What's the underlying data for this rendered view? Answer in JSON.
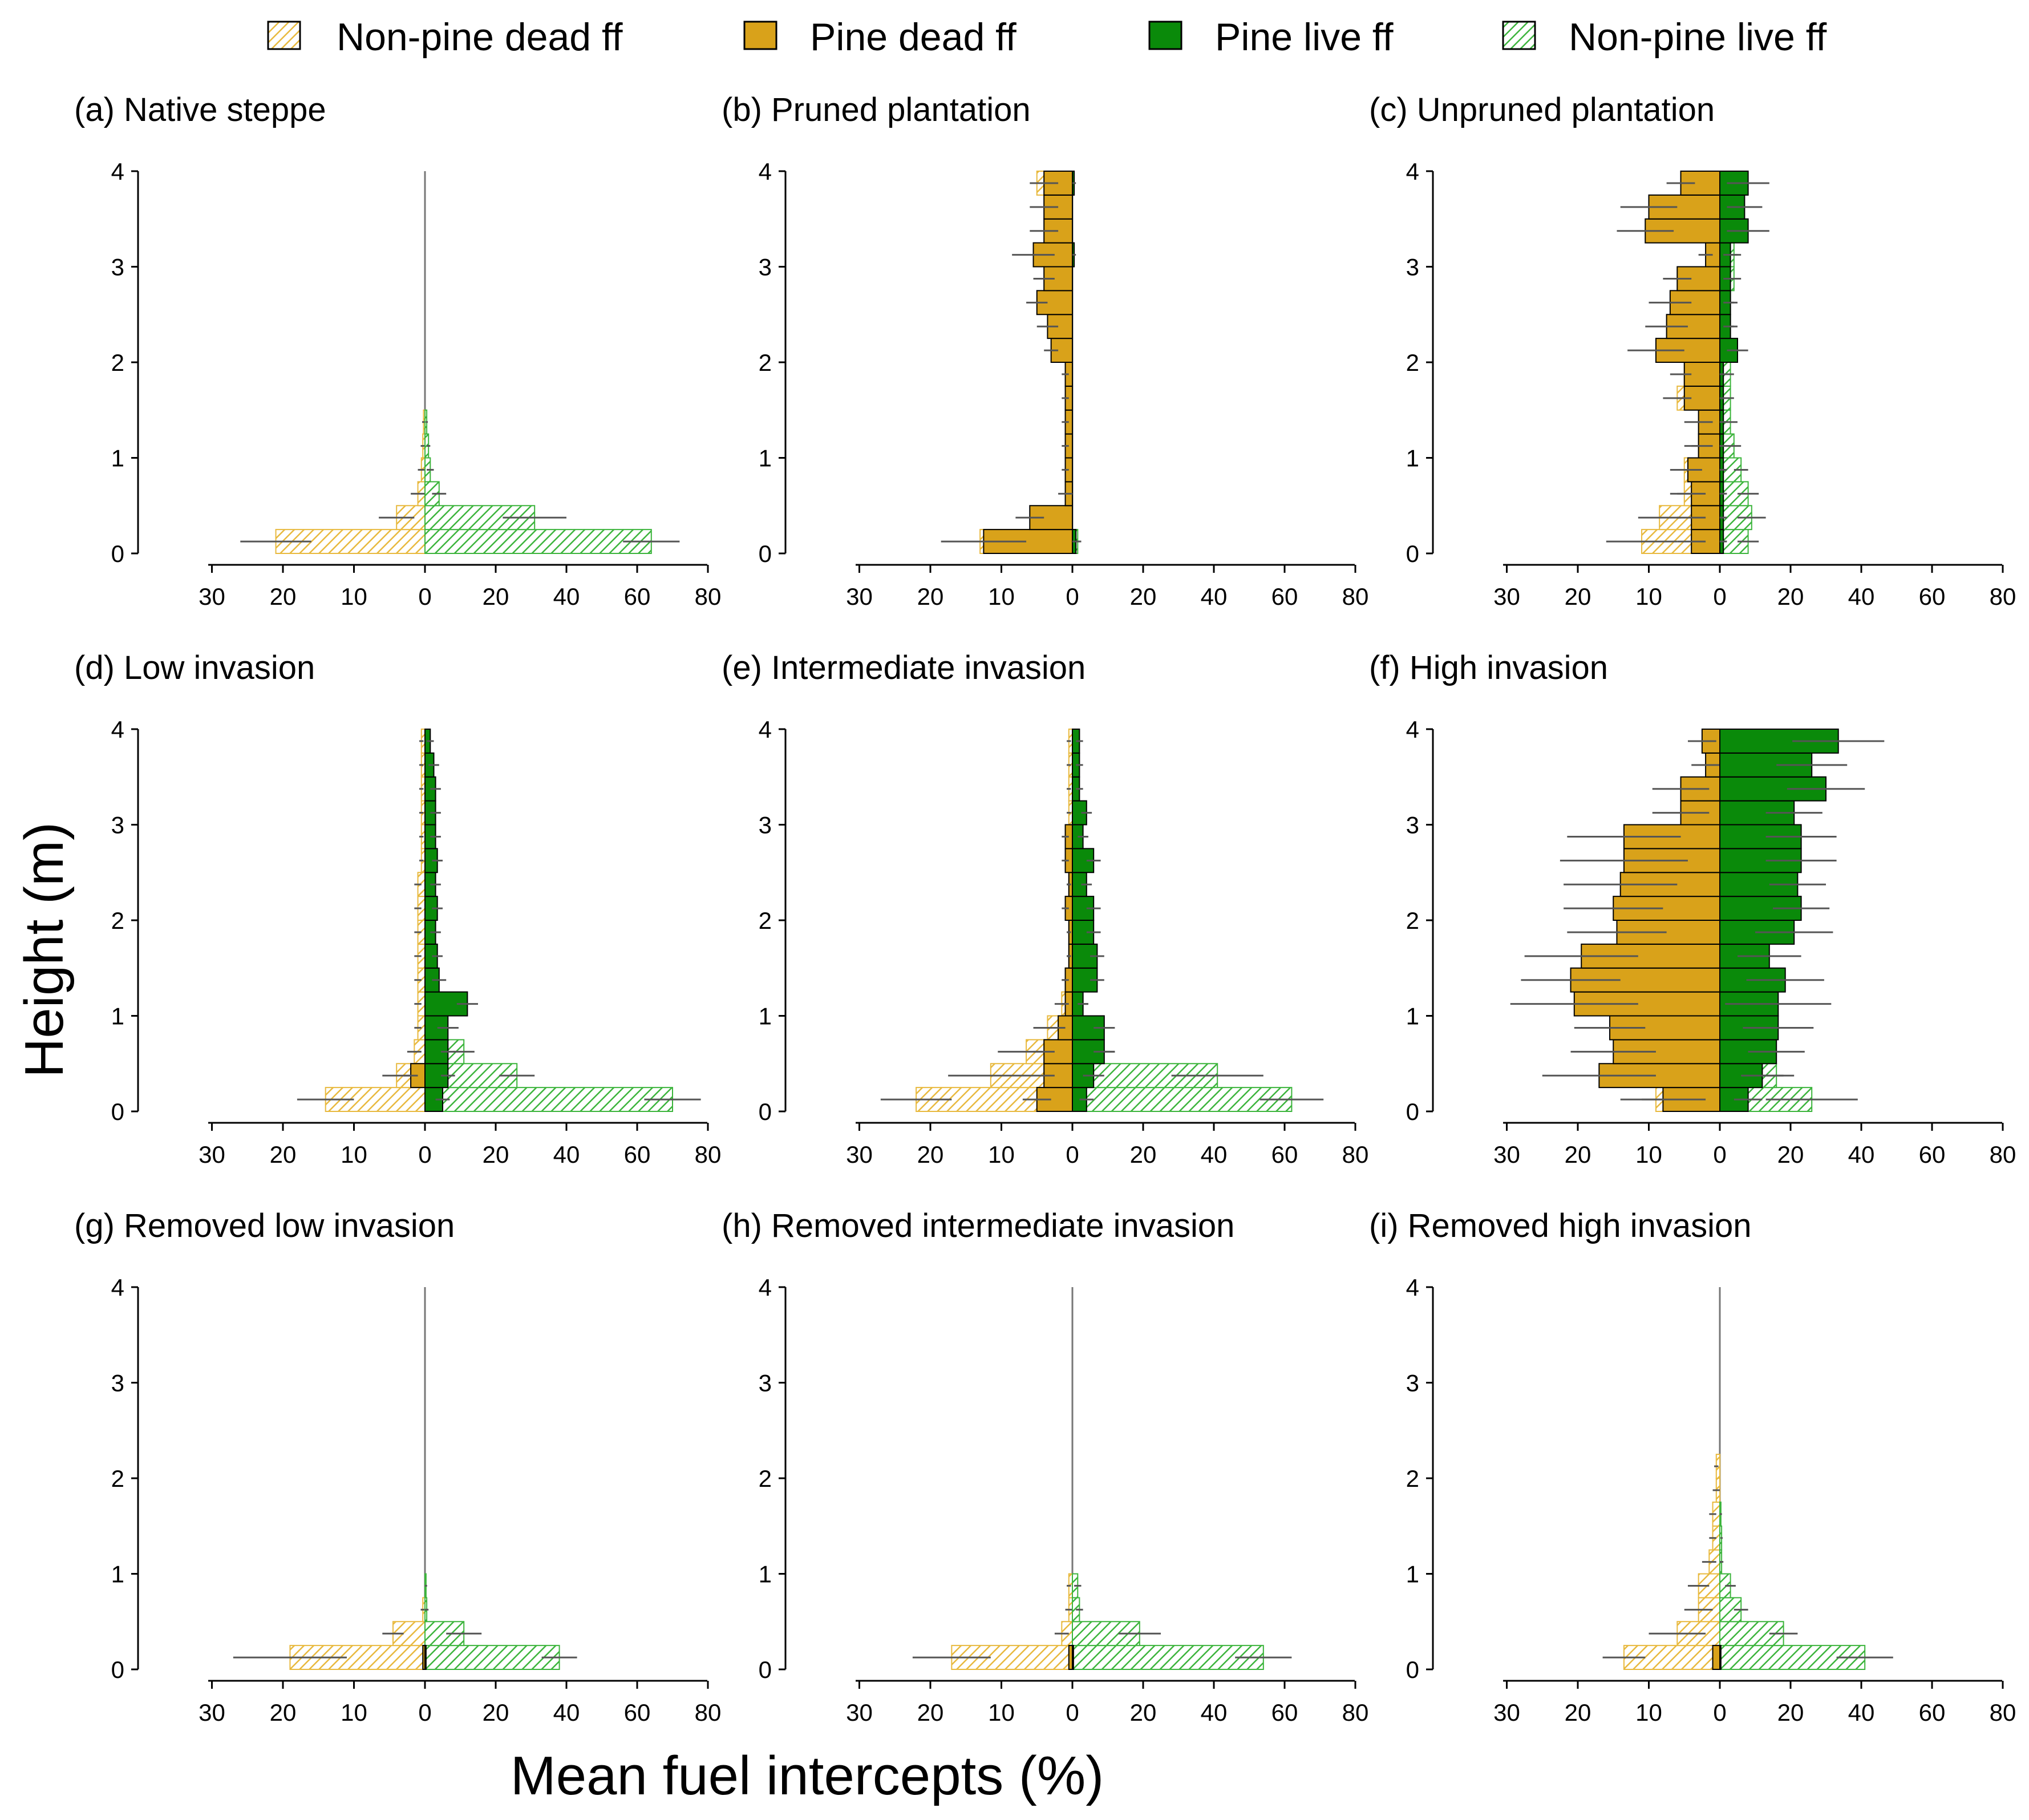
{
  "figure": {
    "ylabel": "Height (m)",
    "xlabel": "Mean fuel intercepts (%)"
  },
  "legend": {
    "items": [
      {
        "key": "npd",
        "label": "Non-pine dead ff"
      },
      {
        "key": "pd",
        "label": "Pine dead ff"
      },
      {
        "key": "pl",
        "label": "Pine live ff"
      },
      {
        "key": "npl",
        "label": "Non-pine live ff"
      }
    ]
  },
  "colors": {
    "npd": "#e8b93e",
    "pd": "#d9a21a",
    "pl": "#0a8a0a",
    "npl": "#3cb43c",
    "err": "#555555",
    "axis": "#000000"
  },
  "chart_data": {
    "type": "bar",
    "orientation": "back-to-back horizontal bars (population pyramid); dead fuel to the left, live fuel to the right",
    "bin_height_m": 0.25,
    "heights_m": [
      0,
      0.25,
      0.5,
      0.75,
      1,
      1.25,
      1.5,
      1.75,
      2,
      2.25,
      2.5,
      2.75,
      3,
      3.25,
      3.5,
      3.75,
      4
    ],
    "y_ticks": [
      "0",
      "1",
      "2",
      "3",
      "4"
    ],
    "x_ticks_left": [
      "30",
      "20",
      "10",
      "0"
    ],
    "x_ticks_right": [
      "20",
      "40",
      "60",
      "80"
    ],
    "xlim_left": [
      0,
      30
    ],
    "xlim_right": [
      0,
      80
    ],
    "panels": [
      {
        "title": "(a) Native steppe",
        "npd": [
          21,
          4,
          1,
          0.5,
          0.3,
          0.2,
          0,
          0,
          0,
          0,
          0,
          0,
          0,
          0,
          0,
          0
        ],
        "npd_err": [
          5,
          2.5,
          1,
          0.5,
          0.3,
          0.2,
          0,
          0,
          0,
          0,
          0,
          0,
          0,
          0,
          0,
          0
        ],
        "pd": [
          0,
          0,
          0,
          0,
          0,
          0,
          0,
          0,
          0,
          0,
          0,
          0,
          0,
          0,
          0,
          0
        ],
        "pd_err": [
          0,
          0,
          0,
          0,
          0,
          0,
          0,
          0,
          0,
          0,
          0,
          0,
          0,
          0,
          0,
          0
        ],
        "pl": [
          0,
          0,
          0,
          0,
          0,
          0,
          0,
          0,
          0,
          0,
          0,
          0,
          0,
          0,
          0,
          0
        ],
        "pl_err": [
          0,
          0,
          0,
          0,
          0,
          0,
          0,
          0,
          0,
          0,
          0,
          0,
          0,
          0,
          0,
          0
        ],
        "npl": [
          64,
          31,
          4,
          1.5,
          1,
          0.5,
          0,
          0,
          0,
          0,
          0,
          0,
          0,
          0,
          0,
          0
        ],
        "npl_err": [
          8,
          9,
          2,
          1,
          0.5,
          0.3,
          0,
          0,
          0,
          0,
          0,
          0,
          0,
          0,
          0,
          0
        ]
      },
      {
        "title": "(b) Pruned plantation",
        "npd": [
          13,
          0,
          0,
          0,
          0,
          0,
          0,
          0,
          0,
          0,
          0,
          0,
          0,
          0,
          0,
          5
        ],
        "npd_err": [
          0,
          0,
          0,
          0,
          0,
          0,
          0,
          0,
          0,
          0,
          0,
          0,
          0,
          0,
          0,
          0
        ],
        "pd": [
          12.5,
          6,
          1,
          1,
          1,
          1,
          1,
          1,
          3,
          3.5,
          5,
          4,
          5.5,
          4,
          4,
          4
        ],
        "pd_err": [
          6,
          2,
          1,
          0.5,
          0.5,
          0.5,
          0.5,
          0.5,
          1,
          1.5,
          1.5,
          1.5,
          3,
          2,
          2,
          2
        ],
        "pl": [
          1,
          0,
          0,
          0,
          0,
          0,
          0,
          0,
          0,
          0,
          0,
          0,
          0.5,
          0,
          0,
          0.5
        ],
        "pl_err": [
          1,
          0,
          0,
          0,
          0,
          0,
          0,
          0,
          0,
          0,
          0,
          0,
          0.5,
          0,
          0,
          0.5
        ],
        "npl": [
          1.5,
          0,
          0,
          0,
          0,
          0,
          0,
          0,
          0,
          0,
          0,
          0,
          0,
          0,
          0,
          0
        ],
        "npl_err": [
          1,
          0,
          0,
          0,
          0,
          0,
          0,
          0,
          0,
          0,
          0,
          0,
          0,
          0,
          0,
          0
        ]
      },
      {
        "title": "(c) Unpruned plantation",
        "npd": [
          11,
          8.5,
          5,
          5,
          3,
          2,
          6,
          5,
          5,
          3,
          3,
          3,
          1,
          1,
          1,
          1
        ],
        "npd_err": [
          5,
          3,
          2,
          2,
          1,
          1,
          2,
          2,
          2,
          1,
          1,
          1,
          1,
          1,
          1,
          1
        ],
        "pd": [
          4,
          4,
          4,
          4.5,
          3,
          3,
          5,
          5,
          9,
          7.5,
          7,
          6,
          2,
          10.5,
          10,
          5.5
        ],
        "pd_err": [
          2,
          2,
          2,
          2,
          2,
          2,
          1,
          1,
          4,
          3,
          3,
          2,
          1,
          4,
          4,
          2
        ],
        "pl": [
          1,
          1,
          1,
          1,
          1,
          1,
          1,
          1,
          5,
          3,
          3,
          3,
          3,
          8,
          7,
          8
        ],
        "pl_err": [
          1,
          1,
          1,
          1,
          1,
          1,
          1,
          1,
          3,
          2,
          2,
          2,
          2,
          6,
          5,
          6
        ],
        "npl": [
          8,
          9,
          8,
          6,
          4,
          3,
          3,
          3,
          3,
          3,
          3,
          4,
          4,
          4,
          4,
          4
        ],
        "npl_err": [
          3,
          4,
          3,
          2,
          2,
          2,
          1,
          1,
          1,
          1,
          1,
          2,
          2,
          2,
          2,
          2
        ]
      },
      {
        "title": "(d) Low invasion",
        "npd": [
          14,
          4,
          1.5,
          1,
          1,
          1,
          1,
          1,
          1,
          1,
          0.5,
          0.5,
          0.5,
          0.5,
          0.5,
          0.5
        ],
        "npd_err": [
          4,
          2,
          1,
          0.5,
          0.5,
          0.5,
          0.5,
          0.5,
          0.5,
          0.5,
          0.3,
          0.3,
          0.3,
          0.3,
          0.3,
          0.3
        ],
        "pd": [
          0,
          2,
          0,
          0,
          0,
          0,
          0,
          0,
          0,
          0,
          0,
          0,
          0,
          0,
          0,
          0
        ],
        "pd_err": [
          0,
          1,
          0,
          0,
          0,
          0,
          0,
          0,
          0,
          0,
          0,
          0,
          0,
          0,
          0,
          0
        ],
        "pl": [
          5,
          6.5,
          6.5,
          6.5,
          12,
          4,
          3.5,
          3,
          3.5,
          3,
          3.5,
          3,
          3,
          3,
          2.5,
          1.5
        ],
        "pl_err": [
          2,
          2,
          2,
          3,
          3,
          2,
          1.5,
          1.5,
          1.5,
          1.5,
          1.5,
          1.5,
          1.5,
          1.5,
          1.5,
          1
        ],
        "npl": [
          70,
          26,
          11,
          4,
          3,
          2,
          1.5,
          1,
          1,
          1,
          1,
          1,
          1,
          1,
          1,
          1
        ],
        "npl_err": [
          8,
          5,
          3,
          2,
          1.5,
          1,
          1,
          0.5,
          0.5,
          0.5,
          0.5,
          0.5,
          0.5,
          0.5,
          0.5,
          0.5
        ]
      },
      {
        "title": "(e) Intermediate invasion",
        "npd": [
          22,
          11.5,
          6.5,
          3.5,
          1.5,
          1,
          0.5,
          0.5,
          0.5,
          0.5,
          0.5,
          0.5,
          0.5,
          0.5,
          0.5,
          0.5
        ],
        "npd_err": [
          5,
          6,
          4,
          2,
          1,
          0.5,
          0.3,
          0.3,
          0.3,
          0.3,
          0.3,
          0.3,
          0.3,
          0.3,
          0.3,
          0.3
        ],
        "pd": [
          5,
          4,
          4,
          2,
          1,
          1,
          0.5,
          0.5,
          1,
          0.5,
          1,
          1,
          0,
          0,
          0,
          0
        ],
        "pd_err": [
          2,
          1.5,
          1.5,
          1,
          0.5,
          0.5,
          0.3,
          0.3,
          0.5,
          0.3,
          0.5,
          0.5,
          0,
          0,
          0,
          0
        ],
        "pl": [
          4,
          6,
          9,
          9,
          3,
          7,
          7,
          6,
          6,
          4,
          6,
          3,
          4,
          2,
          2,
          2
        ],
        "pl_err": [
          2,
          3,
          3,
          3,
          1.5,
          2,
          2,
          2,
          2,
          1.5,
          2,
          1.5,
          1.5,
          1,
          1,
          1
        ],
        "npl": [
          62,
          41,
          8,
          4,
          3,
          2,
          2,
          2,
          2,
          2,
          2,
          1,
          1,
          1,
          1,
          1
        ],
        "npl_err": [
          9,
          13,
          4,
          2,
          1.5,
          1,
          1,
          1,
          1,
          1,
          1,
          0.5,
          0.5,
          0.5,
          0.5,
          0.5
        ]
      },
      {
        "title": "(f) High invasion",
        "npd": [
          9,
          3,
          2,
          2,
          2,
          2,
          2,
          2,
          2,
          1,
          1,
          1,
          1,
          1,
          1,
          1
        ],
        "npd_err": [
          2,
          1,
          1,
          1,
          1,
          1,
          1,
          1,
          1,
          0.5,
          0.5,
          0.5,
          0.5,
          0.5,
          0.5,
          0.5
        ],
        "pd": [
          8,
          17,
          15,
          15.5,
          20.5,
          21,
          19.5,
          14.5,
          15,
          14,
          13.5,
          13.5,
          5.5,
          5.5,
          2,
          2.5
        ],
        "pd_err": [
          6,
          8,
          6,
          5,
          9,
          7,
          8,
          7,
          7,
          8,
          9,
          8,
          4,
          4,
          2,
          2
        ],
        "pl": [
          8,
          12,
          16,
          16.5,
          16.5,
          18.5,
          14,
          21,
          23,
          22,
          23,
          23,
          21,
          30,
          26,
          33.5
        ],
        "pl_err": [
          4,
          6,
          8,
          10,
          15,
          11,
          9,
          11,
          8,
          8,
          10,
          10,
          8,
          11,
          10,
          13
        ],
        "npl": [
          26,
          16,
          12,
          10,
          9,
          9,
          7,
          7,
          7,
          7,
          6,
          5,
          5,
          5,
          4,
          4
        ],
        "npl_err": [
          13,
          5,
          4,
          3,
          3,
          3,
          3,
          3,
          3,
          3,
          2,
          2,
          2,
          2,
          2,
          2
        ]
      },
      {
        "title": "(g) Removed low invasion",
        "npd": [
          19,
          4.5,
          0.3,
          0,
          0,
          0,
          0,
          0,
          0,
          0,
          0,
          0,
          0,
          0,
          0,
          0
        ],
        "npd_err": [
          8,
          1.5,
          0.3,
          0,
          0,
          0,
          0,
          0,
          0,
          0,
          0,
          0,
          0,
          0,
          0,
          0
        ],
        "pd": [
          0.3,
          0,
          0,
          0,
          0,
          0,
          0,
          0,
          0,
          0,
          0,
          0,
          0,
          0,
          0,
          0
        ],
        "pd_err": [
          0,
          0,
          0,
          0,
          0,
          0,
          0,
          0,
          0,
          0,
          0,
          0,
          0,
          0,
          0,
          0
        ],
        "pl": [
          0.3,
          0,
          0,
          0,
          0,
          0,
          0,
          0,
          0,
          0,
          0,
          0,
          0,
          0,
          0,
          0
        ],
        "pl_err": [
          0,
          0,
          0,
          0,
          0,
          0,
          0,
          0,
          0,
          0,
          0,
          0,
          0,
          0,
          0,
          0
        ],
        "npl": [
          38,
          11,
          0.5,
          0.3,
          0,
          0,
          0,
          0,
          0,
          0,
          0,
          0,
          0,
          0,
          0,
          0
        ],
        "npl_err": [
          5,
          5,
          0.5,
          0.3,
          0,
          0,
          0,
          0,
          0,
          0,
          0,
          0,
          0,
          0,
          0,
          0
        ]
      },
      {
        "title": "(h) Removed intermediate invasion",
        "npd": [
          17,
          1.5,
          0.5,
          0.5,
          0,
          0,
          0,
          0,
          0,
          0,
          0,
          0,
          0,
          0,
          0,
          0
        ],
        "npd_err": [
          5.5,
          1,
          0.5,
          0.3,
          0,
          0,
          0,
          0,
          0,
          0,
          0,
          0,
          0,
          0,
          0,
          0
        ],
        "pd": [
          0.5,
          0,
          0,
          0,
          0,
          0,
          0,
          0,
          0,
          0,
          0,
          0,
          0,
          0,
          0,
          0
        ],
        "pd_err": [
          0,
          0,
          0,
          0,
          0,
          0,
          0,
          0,
          0,
          0,
          0,
          0,
          0,
          0,
          0,
          0
        ],
        "pl": [
          0.3,
          0,
          0,
          0,
          0,
          0,
          0,
          0,
          0,
          0,
          0,
          0,
          0,
          0,
          0,
          0
        ],
        "pl_err": [
          0,
          0,
          0,
          0,
          0,
          0,
          0,
          0,
          0,
          0,
          0,
          0,
          0,
          0,
          0,
          0
        ],
        "npl": [
          54,
          19,
          2,
          1.5,
          0,
          0,
          0,
          0,
          0,
          0,
          0,
          0,
          0,
          0,
          0,
          0
        ],
        "npl_err": [
          8,
          6,
          1,
          1,
          0,
          0,
          0,
          0,
          0,
          0,
          0,
          0,
          0,
          0,
          0,
          0
        ]
      },
      {
        "title": "(i) Removed high invasion",
        "npd": [
          13.5,
          6,
          3,
          3,
          1.5,
          1,
          1,
          0.5,
          0.5,
          0,
          0,
          0,
          0,
          0,
          0,
          0
        ],
        "npd_err": [
          3,
          4,
          2,
          1.5,
          1,
          0.5,
          0.5,
          0.5,
          0.3,
          0,
          0,
          0,
          0,
          0,
          0,
          0
        ],
        "pd": [
          1,
          0,
          0,
          0,
          0,
          0,
          0,
          0,
          0,
          0,
          0,
          0,
          0,
          0,
          0,
          0
        ],
        "pd_err": [
          0,
          0,
          0,
          0,
          0,
          0,
          0,
          0,
          0,
          0,
          0,
          0,
          0,
          0,
          0,
          0
        ],
        "pl": [
          0.3,
          0,
          0,
          0,
          0,
          0,
          0,
          0,
          0,
          0,
          0,
          0,
          0,
          0,
          0,
          0
        ],
        "pl_err": [
          0,
          0,
          0,
          0,
          0,
          0,
          0,
          0,
          0,
          0,
          0,
          0,
          0,
          0,
          0,
          0
        ],
        "npl": [
          41,
          18,
          6,
          3,
          0.5,
          0.5,
          0.3,
          0,
          0,
          0,
          0,
          0,
          0,
          0,
          0,
          0
        ],
        "npl_err": [
          8,
          4,
          2,
          1.5,
          0.5,
          0.3,
          0.3,
          0,
          0,
          0,
          0,
          0,
          0,
          0,
          0,
          0
        ]
      }
    ]
  }
}
